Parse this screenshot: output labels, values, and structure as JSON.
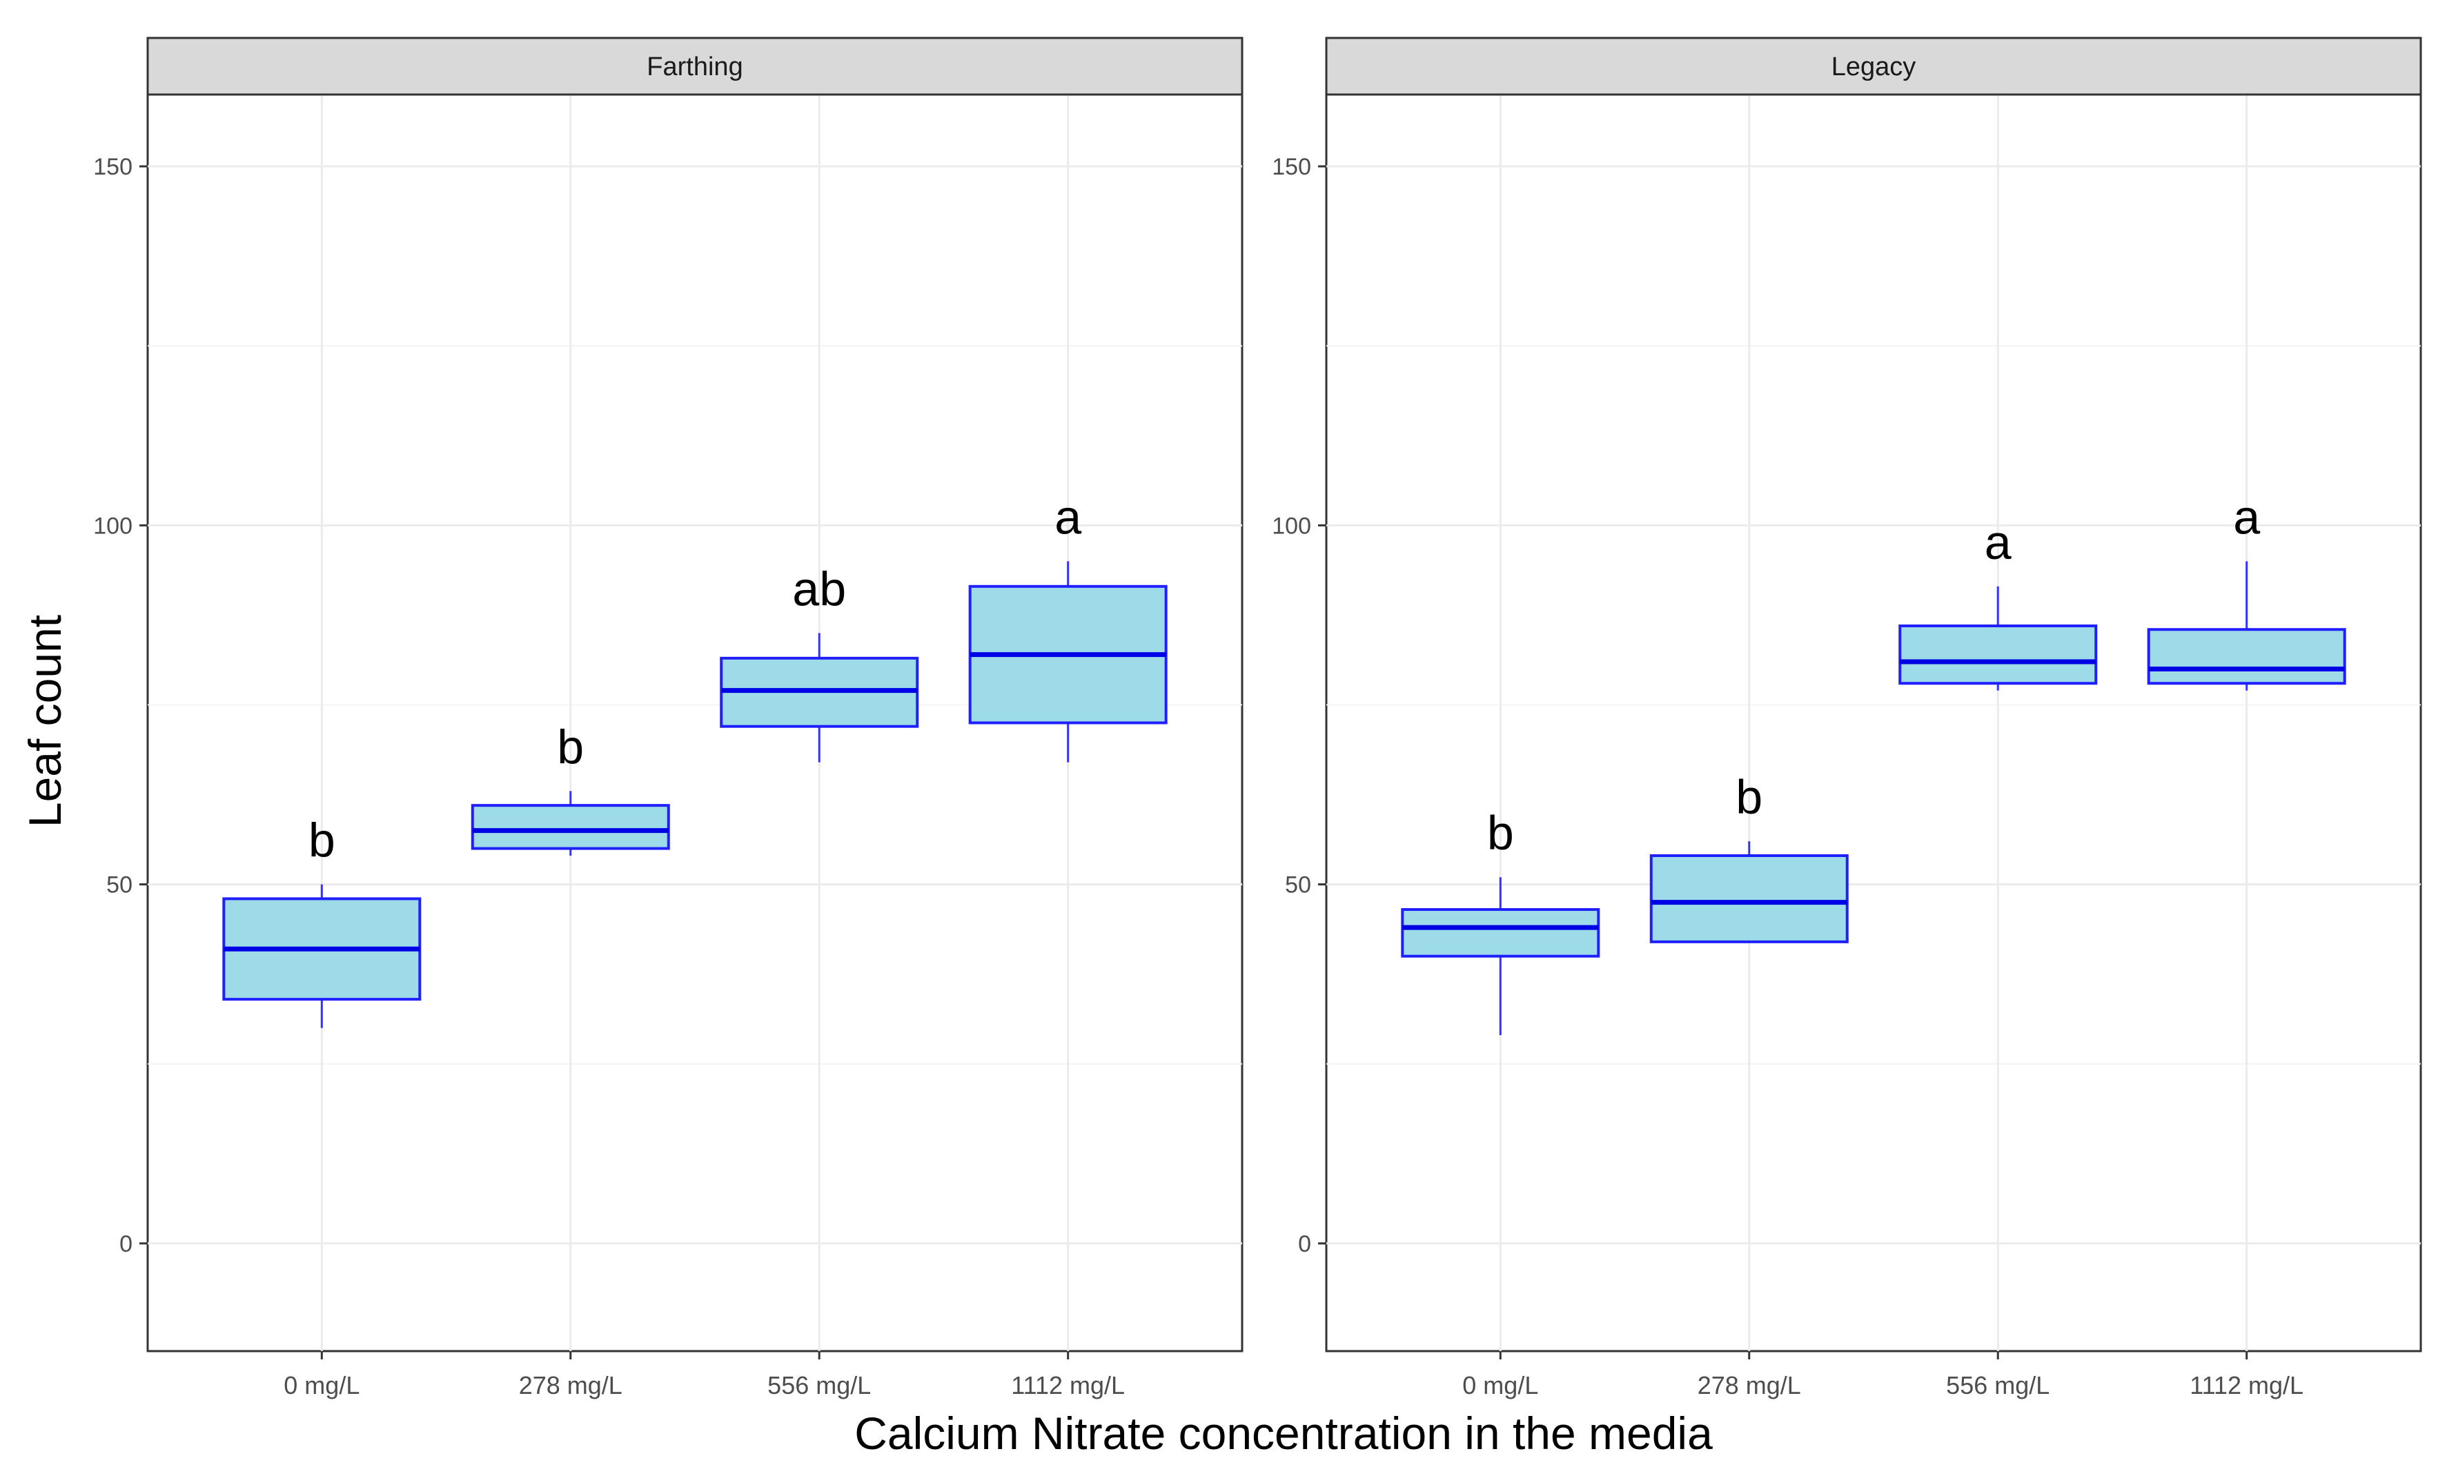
{
  "chart_data": {
    "type": "boxplot",
    "xlabel": "Calcium Nitrate concentration in the media",
    "ylabel": "Leaf count",
    "ylim": [
      -15,
      160
    ],
    "yticks": [
      0,
      50,
      100,
      150
    ],
    "categories": [
      "0 mg/L",
      "278 mg/L",
      "556 mg/L",
      "1112 mg/L"
    ],
    "colors": {
      "box_fill": "#9ddbe8",
      "box_stroke": "#1f1fff",
      "median": "#0000e6",
      "whisker": "#3333ff"
    },
    "facets": [
      {
        "name": "Farthing",
        "boxes": [
          {
            "category": "0 mg/L",
            "min": 30,
            "q1": 34,
            "median": 41,
            "q3": 48,
            "max": 50,
            "letter": "b"
          },
          {
            "category": "278 mg/L",
            "min": 54,
            "q1": 55,
            "median": 57.5,
            "q3": 61,
            "max": 63,
            "letter": "b"
          },
          {
            "category": "556 mg/L",
            "min": 67,
            "q1": 72,
            "median": 77,
            "q3": 81.5,
            "max": 85,
            "letter": "ab"
          },
          {
            "category": "1112 mg/L",
            "min": 67,
            "q1": 72.5,
            "median": 82,
            "q3": 91.5,
            "max": 95,
            "letter": "a"
          }
        ]
      },
      {
        "name": "Legacy",
        "boxes": [
          {
            "category": "0 mg/L",
            "min": 29,
            "q1": 40,
            "median": 44,
            "q3": 46.5,
            "max": 51,
            "letter": "b"
          },
          {
            "category": "278 mg/L",
            "min": 42,
            "q1": 42,
            "median": 47.5,
            "q3": 54,
            "max": 56,
            "letter": "b"
          },
          {
            "category": "556 mg/L",
            "min": 77,
            "q1": 78,
            "median": 81,
            "q3": 86,
            "max": 91.5,
            "letter": "a"
          },
          {
            "category": "1112 mg/L",
            "min": 77,
            "q1": 78,
            "median": 80,
            "q3": 85.5,
            "max": 95,
            "letter": "a"
          }
        ]
      }
    ]
  }
}
